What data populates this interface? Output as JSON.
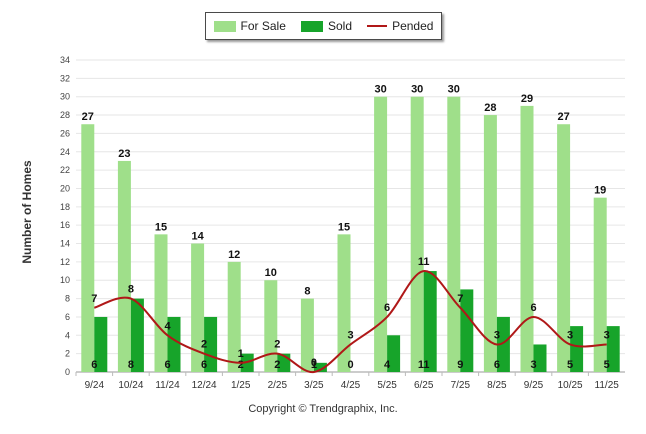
{
  "chart_data": {
    "type": "bar",
    "categories": [
      "9/24",
      "10/24",
      "11/24",
      "12/24",
      "1/25",
      "2/25",
      "3/25",
      "4/25",
      "5/25",
      "6/25",
      "7/25",
      "8/25",
      "9/25",
      "10/25",
      "11/25"
    ],
    "series": [
      {
        "name": "For Sale",
        "type": "bar",
        "color": "#9fdf8a",
        "values": [
          27,
          23,
          15,
          14,
          12,
          10,
          8,
          15,
          30,
          30,
          30,
          28,
          29,
          27,
          19
        ]
      },
      {
        "name": "Sold",
        "type": "bar",
        "color": "#17a42a",
        "values": [
          6,
          8,
          6,
          6,
          2,
          2,
          1,
          0,
          4,
          11,
          9,
          6,
          3,
          5,
          5
        ]
      },
      {
        "name": "Pended",
        "type": "line",
        "color": "#b01818",
        "values": [
          7,
          8,
          4,
          2,
          1,
          2,
          0,
          3,
          6,
          11,
          7,
          3,
          6,
          3,
          3
        ]
      }
    ],
    "ylabel": "Number of Homes",
    "ylim": [
      0,
      34
    ],
    "yticks": [
      0,
      2,
      4,
      6,
      8,
      10,
      12,
      14,
      16,
      18,
      20,
      22,
      24,
      26,
      28,
      30,
      32,
      34
    ],
    "grid": true,
    "legend_position": "top"
  },
  "footer": {
    "copyright": "Copyright © Trendgraphix, Inc."
  }
}
